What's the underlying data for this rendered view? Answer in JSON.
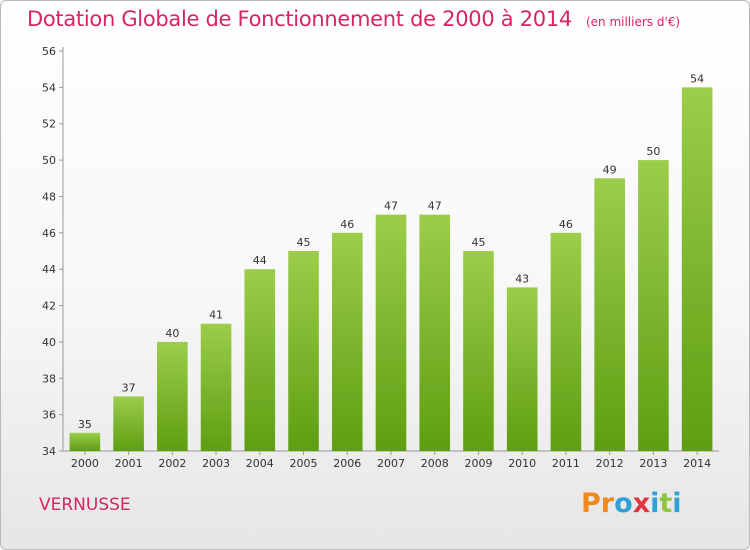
{
  "page": {
    "title": "Dotation Globale de Fonctionnement de 2000 à 2014",
    "unit": "(en milliers d'€)",
    "place": "VERNUSSE",
    "logo": {
      "letters": [
        "P",
        "r",
        "o",
        "x",
        "i",
        "t",
        "i"
      ],
      "text": "Proxiti"
    }
  },
  "colors": {
    "title": "#d9245e",
    "bar_top": "#9ccd4a",
    "bar_bottom": "#5e9e12",
    "logo": [
      "#f08a1c",
      "#f08a1c",
      "#2fa0d8",
      "#e2333e",
      "#2fa0d8",
      "#8dc63f",
      "#2fa0d8"
    ]
  },
  "chart_data": {
    "type": "bar",
    "title": "Dotation Globale de Fonctionnement de 2000 à 2014",
    "xlabel": "",
    "ylabel": "",
    "categories": [
      "2000",
      "2001",
      "2002",
      "2003",
      "2004",
      "2005",
      "2006",
      "2007",
      "2008",
      "2009",
      "2010",
      "2011",
      "2012",
      "2013",
      "2014"
    ],
    "values": [
      35,
      37,
      40,
      41,
      44,
      45,
      46,
      47,
      47,
      45,
      43,
      46,
      49,
      50,
      54
    ],
    "ylim": [
      34,
      56
    ],
    "yticks": [
      34,
      36,
      38,
      40,
      42,
      44,
      46,
      48,
      50,
      52,
      54,
      56
    ],
    "grid": false,
    "legend": "none"
  }
}
